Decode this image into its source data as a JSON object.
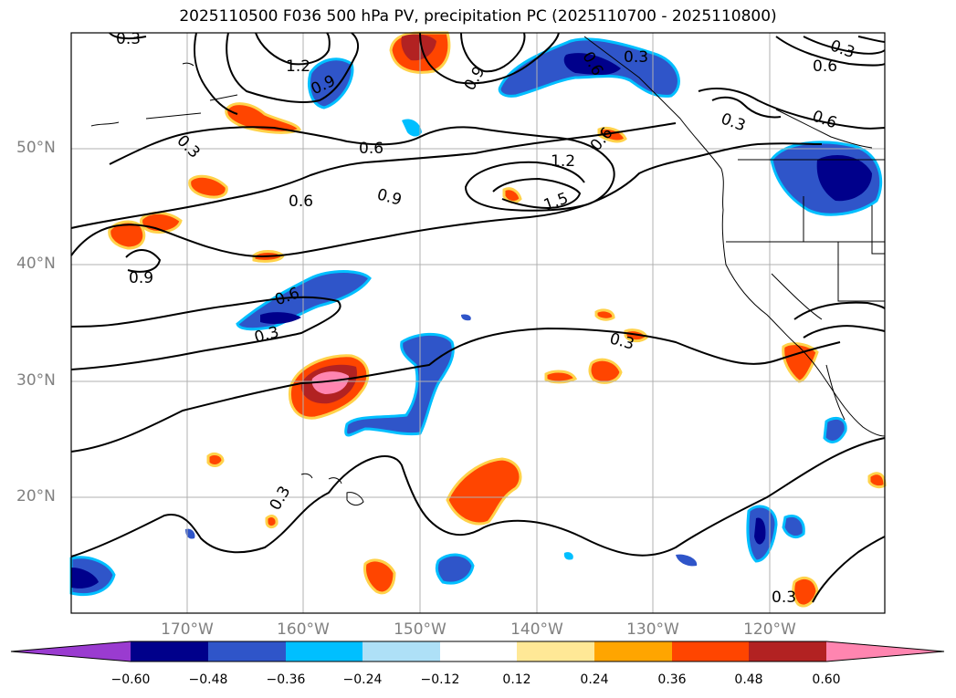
{
  "title": "2025110500 F036 500 hPa PV, precipitation PC (2025110700 - 2025110800)",
  "lat_labels": [
    "50°N",
    "40°N",
    "30°N",
    "20°N"
  ],
  "lon_labels": [
    "170°W",
    "160°W",
    "150°W",
    "140°W",
    "130°W",
    "120°W"
  ],
  "contour_labels": [
    "0.3",
    "1.2",
    "0.9",
    "0.9",
    "0.3",
    "0.6",
    "0.3",
    "0.6",
    "0.6",
    "0.6",
    "0.9",
    "1.2",
    "1.5",
    "0.6",
    "0.6",
    "0.3",
    "0.9",
    "0.6",
    "0.3",
    "0.3",
    "0.3",
    "0.3"
  ],
  "colorbar": {
    "ticks": [
      "−0.60",
      "−0.48",
      "−0.36",
      "−0.24",
      "−0.12",
      "0.12",
      "0.24",
      "0.36",
      "0.48",
      "0.60"
    ],
    "colors": [
      "#9a3bd0",
      "#00008b",
      "#2f55c9",
      "#00bfff",
      "#aee0f7",
      "#ffffff",
      "#ffe896",
      "#ffa500",
      "#ff4500",
      "#b22222",
      "#ff85b0"
    ]
  },
  "map": {
    "lon_range": [
      -180,
      -110
    ],
    "lat_range": [
      10,
      60
    ],
    "grid": true,
    "variable": "500 hPa PV",
    "shading": "precipitation PC"
  }
}
